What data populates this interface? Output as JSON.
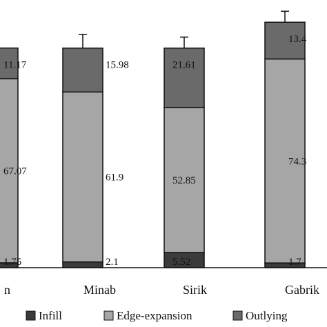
{
  "chart_data": {
    "type": "bar",
    "stacked": true,
    "categories": [
      "n",
      "Minab",
      "Sirik",
      "Gabrik"
    ],
    "series": [
      {
        "name": "Infill",
        "values": [
          1.75,
          2.1,
          5.52,
          1.7
        ],
        "labels": [
          "1.75",
          "2.1",
          "5.52",
          "1.7"
        ],
        "errors": [
          null,
          1.5,
          1.5,
          1.5
        ],
        "color": "#3a3a3a"
      },
      {
        "name": "Edge-expansion",
        "values": [
          67.07,
          61.9,
          52.85,
          74.3
        ],
        "labels": [
          "67.07",
          "61.9",
          "52.85",
          "74.3"
        ],
        "errors": [
          null,
          4.0,
          4.0,
          4.0
        ],
        "color": "#a6a6a6"
      },
      {
        "name": "Outlying",
        "values": [
          11.17,
          15.98,
          21.61,
          13.4
        ],
        "labels": [
          "11.17",
          "15.98",
          "21.61",
          "13.4"
        ],
        "errors": [
          null,
          5.0,
          4.0,
          4.0
        ],
        "color": "#6a6a6a"
      }
    ],
    "ylim": [
      0,
      100
    ],
    "legend_position": "bottom",
    "title": "",
    "xlabel": "",
    "ylabel": ""
  }
}
